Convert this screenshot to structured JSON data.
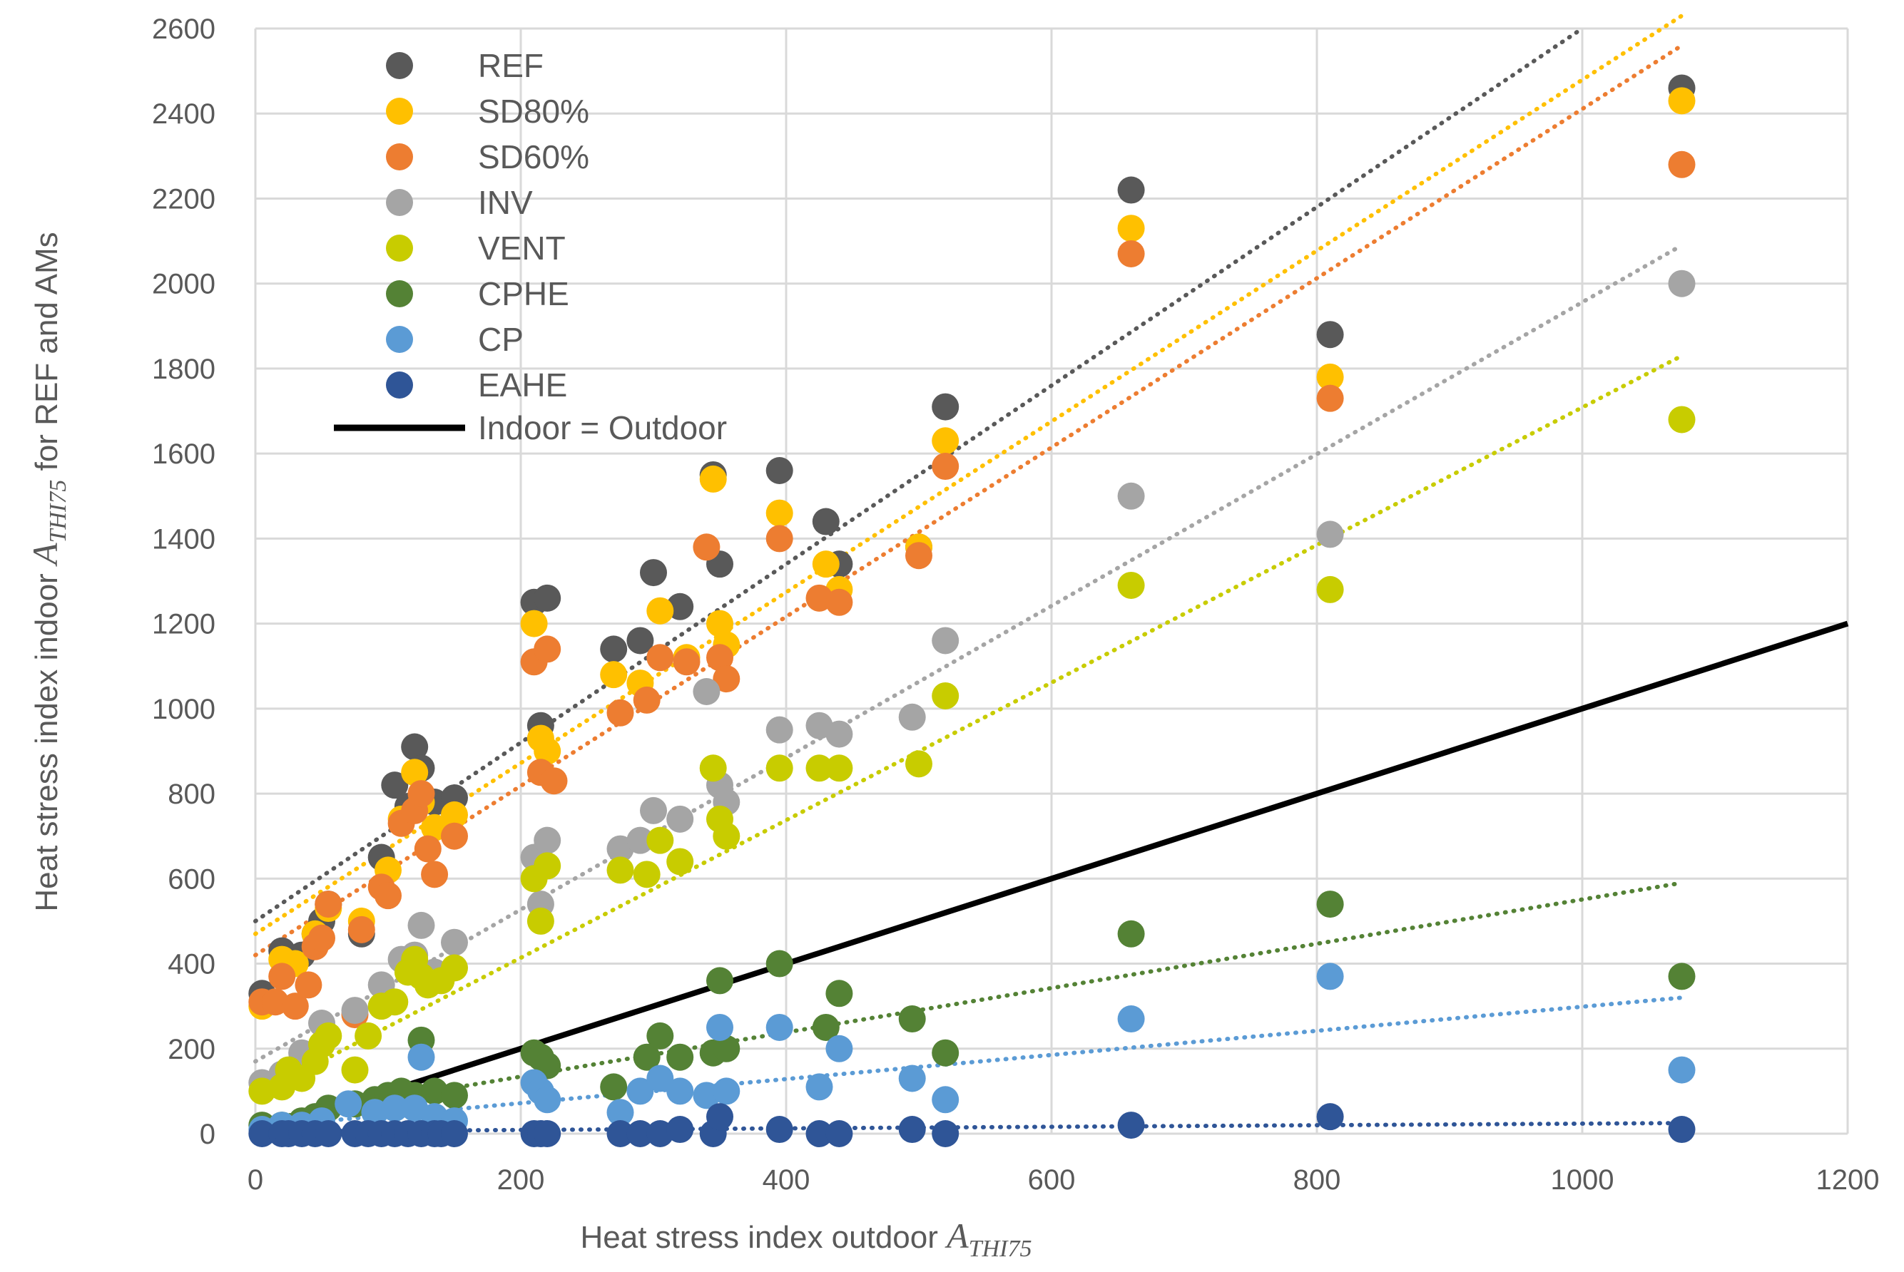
{
  "chart_data": {
    "type": "scatter",
    "title": "",
    "xlabel": "Heat stress index outdoor A_THI75",
    "xlabel_main": "Heat stress index outdoor ",
    "xlabel_sym": "A",
    "xlabel_sub": "THI75",
    "ylabel": "Heat stress index indoor A_THI75 for REF and AMs",
    "ylabel_pre": "Heat stress index indoor ",
    "ylabel_sym": "A",
    "ylabel_sub": "THI75",
    "ylabel_post": " for REF and AMs",
    "xlim": [
      0,
      1200
    ],
    "ylim": [
      0,
      2600
    ],
    "xticks": [
      "0",
      "200",
      "400",
      "600",
      "800",
      "1000",
      "1200"
    ],
    "yticks": [
      "0",
      "200",
      "400",
      "600",
      "800",
      "1000",
      "1200",
      "1400",
      "1600",
      "1800",
      "2000",
      "2200",
      "2400",
      "2600"
    ],
    "grid": true,
    "legend_position": "top-left",
    "identity_line": {
      "name": "Indoor = Outdoor",
      "color": "#000000",
      "x": [
        0,
        1200
      ],
      "y": [
        0,
        1200
      ]
    },
    "series": [
      {
        "name": "REF",
        "color": "#595959",
        "trend": [
          [
            0,
            500
          ],
          [
            1000,
            2600
          ]
        ],
        "points": [
          [
            5,
            330
          ],
          [
            20,
            430
          ],
          [
            35,
            420
          ],
          [
            45,
            470
          ],
          [
            50,
            500
          ],
          [
            55,
            540
          ],
          [
            80,
            470
          ],
          [
            95,
            650
          ],
          [
            105,
            820
          ],
          [
            115,
            770
          ],
          [
            120,
            910
          ],
          [
            125,
            860
          ],
          [
            135,
            780
          ],
          [
            150,
            790
          ],
          [
            210,
            1250
          ],
          [
            220,
            1260
          ],
          [
            215,
            960
          ],
          [
            270,
            1140
          ],
          [
            290,
            1160
          ],
          [
            300,
            1320
          ],
          [
            320,
            1240
          ],
          [
            345,
            1550
          ],
          [
            350,
            1340
          ],
          [
            395,
            1560
          ],
          [
            430,
            1440
          ],
          [
            440,
            1340
          ],
          [
            500,
            1380
          ],
          [
            520,
            1710
          ],
          [
            660,
            2220
          ],
          [
            810,
            1880
          ],
          [
            1075,
            2460
          ]
        ]
      },
      {
        "name": "SD80%",
        "color": "#FFC000",
        "trend": [
          [
            0,
            470
          ],
          [
            1075,
            2630
          ]
        ],
        "points": [
          [
            5,
            300
          ],
          [
            20,
            410
          ],
          [
            30,
            400
          ],
          [
            45,
            470
          ],
          [
            55,
            530
          ],
          [
            80,
            500
          ],
          [
            100,
            620
          ],
          [
            110,
            740
          ],
          [
            120,
            850
          ],
          [
            125,
            780
          ],
          [
            135,
            720
          ],
          [
            150,
            750
          ],
          [
            210,
            1200
          ],
          [
            215,
            930
          ],
          [
            220,
            900
          ],
          [
            270,
            1080
          ],
          [
            290,
            1060
          ],
          [
            305,
            1230
          ],
          [
            325,
            1120
          ],
          [
            345,
            1540
          ],
          [
            350,
            1200
          ],
          [
            355,
            1150
          ],
          [
            395,
            1460
          ],
          [
            430,
            1340
          ],
          [
            440,
            1280
          ],
          [
            500,
            1380
          ],
          [
            520,
            1630
          ],
          [
            660,
            2130
          ],
          [
            810,
            1780
          ],
          [
            1075,
            2430
          ]
        ]
      },
      {
        "name": "SD60%",
        "color": "#ED7D31",
        "trend": [
          [
            0,
            420
          ],
          [
            1075,
            2560
          ]
        ],
        "points": [
          [
            5,
            310
          ],
          [
            15,
            310
          ],
          [
            20,
            370
          ],
          [
            30,
            300
          ],
          [
            40,
            350
          ],
          [
            45,
            440
          ],
          [
            50,
            460
          ],
          [
            55,
            540
          ],
          [
            75,
            280
          ],
          [
            80,
            480
          ],
          [
            95,
            580
          ],
          [
            100,
            560
          ],
          [
            110,
            730
          ],
          [
            120,
            760
          ],
          [
            125,
            800
          ],
          [
            130,
            670
          ],
          [
            135,
            610
          ],
          [
            150,
            700
          ],
          [
            210,
            1110
          ],
          [
            215,
            850
          ],
          [
            220,
            1140
          ],
          [
            225,
            830
          ],
          [
            275,
            990
          ],
          [
            295,
            1020
          ],
          [
            305,
            1120
          ],
          [
            325,
            1110
          ],
          [
            340,
            1380
          ],
          [
            350,
            1120
          ],
          [
            355,
            1070
          ],
          [
            395,
            1400
          ],
          [
            425,
            1260
          ],
          [
            440,
            1250
          ],
          [
            500,
            1360
          ],
          [
            520,
            1570
          ],
          [
            660,
            2070
          ],
          [
            810,
            1730
          ],
          [
            1075,
            2280
          ]
        ]
      },
      {
        "name": "INV",
        "color": "#A5A5A5",
        "trend": [
          [
            0,
            170
          ],
          [
            1075,
            2090
          ]
        ],
        "points": [
          [
            5,
            120
          ],
          [
            20,
            140
          ],
          [
            35,
            190
          ],
          [
            50,
            260
          ],
          [
            75,
            290
          ],
          [
            95,
            350
          ],
          [
            110,
            410
          ],
          [
            120,
            420
          ],
          [
            125,
            490
          ],
          [
            135,
            380
          ],
          [
            150,
            450
          ],
          [
            210,
            650
          ],
          [
            215,
            540
          ],
          [
            220,
            690
          ],
          [
            275,
            670
          ],
          [
            290,
            690
          ],
          [
            300,
            760
          ],
          [
            320,
            740
          ],
          [
            340,
            1040
          ],
          [
            350,
            820
          ],
          [
            355,
            780
          ],
          [
            395,
            950
          ],
          [
            425,
            960
          ],
          [
            440,
            940
          ],
          [
            495,
            980
          ],
          [
            520,
            1160
          ],
          [
            660,
            1500
          ],
          [
            810,
            1410
          ],
          [
            1075,
            2000
          ]
        ]
      },
      {
        "name": "VENT",
        "color": "#C8CC00",
        "trend": [
          [
            0,
            90
          ],
          [
            1075,
            1830
          ]
        ],
        "points": [
          [
            5,
            100
          ],
          [
            20,
            110
          ],
          [
            25,
            150
          ],
          [
            35,
            130
          ],
          [
            45,
            170
          ],
          [
            50,
            210
          ],
          [
            55,
            230
          ],
          [
            75,
            150
          ],
          [
            85,
            230
          ],
          [
            95,
            300
          ],
          [
            105,
            310
          ],
          [
            115,
            380
          ],
          [
            120,
            410
          ],
          [
            125,
            370
          ],
          [
            130,
            350
          ],
          [
            140,
            360
          ],
          [
            150,
            390
          ],
          [
            210,
            600
          ],
          [
            215,
            500
          ],
          [
            220,
            630
          ],
          [
            275,
            620
          ],
          [
            295,
            610
          ],
          [
            305,
            690
          ],
          [
            320,
            640
          ],
          [
            345,
            860
          ],
          [
            350,
            740
          ],
          [
            355,
            700
          ],
          [
            395,
            860
          ],
          [
            425,
            860
          ],
          [
            440,
            860
          ],
          [
            500,
            870
          ],
          [
            520,
            1030
          ],
          [
            660,
            1290
          ],
          [
            810,
            1280
          ],
          [
            1075,
            1680
          ]
        ]
      },
      {
        "name": "CPHE",
        "color": "#548235",
        "trend": [
          [
            0,
            30
          ],
          [
            1075,
            590
          ]
        ],
        "points": [
          [
            5,
            20
          ],
          [
            20,
            20
          ],
          [
            35,
            30
          ],
          [
            45,
            40
          ],
          [
            55,
            60
          ],
          [
            75,
            70
          ],
          [
            90,
            80
          ],
          [
            100,
            90
          ],
          [
            110,
            100
          ],
          [
            120,
            90
          ],
          [
            125,
            220
          ],
          [
            135,
            100
          ],
          [
            150,
            90
          ],
          [
            210,
            190
          ],
          [
            215,
            180
          ],
          [
            220,
            160
          ],
          [
            270,
            110
          ],
          [
            295,
            180
          ],
          [
            305,
            230
          ],
          [
            320,
            180
          ],
          [
            345,
            190
          ],
          [
            350,
            360
          ],
          [
            355,
            200
          ],
          [
            395,
            400
          ],
          [
            430,
            250
          ],
          [
            440,
            330
          ],
          [
            495,
            270
          ],
          [
            520,
            190
          ],
          [
            660,
            470
          ],
          [
            810,
            540
          ],
          [
            1075,
            370
          ]
        ]
      },
      {
        "name": "CP",
        "color": "#5B9BD5",
        "trend": [
          [
            0,
            15
          ],
          [
            1075,
            320
          ]
        ],
        "points": [
          [
            5,
            10
          ],
          [
            20,
            20
          ],
          [
            35,
            20
          ],
          [
            50,
            30
          ],
          [
            70,
            70
          ],
          [
            90,
            50
          ],
          [
            105,
            60
          ],
          [
            120,
            60
          ],
          [
            125,
            180
          ],
          [
            135,
            40
          ],
          [
            150,
            30
          ],
          [
            210,
            120
          ],
          [
            215,
            100
          ],
          [
            220,
            80
          ],
          [
            275,
            50
          ],
          [
            290,
            100
          ],
          [
            305,
            130
          ],
          [
            320,
            100
          ],
          [
            340,
            90
          ],
          [
            350,
            250
          ],
          [
            355,
            100
          ],
          [
            395,
            250
          ],
          [
            425,
            110
          ],
          [
            440,
            200
          ],
          [
            495,
            130
          ],
          [
            520,
            80
          ],
          [
            660,
            270
          ],
          [
            810,
            370
          ],
          [
            1075,
            150
          ]
        ]
      },
      {
        "name": "EAHE",
        "color": "#2F5597",
        "trend": [
          [
            0,
            5
          ],
          [
            1075,
            25
          ]
        ],
        "points": [
          [
            5,
            0
          ],
          [
            20,
            0
          ],
          [
            25,
            0
          ],
          [
            35,
            0
          ],
          [
            45,
            0
          ],
          [
            55,
            0
          ],
          [
            75,
            0
          ],
          [
            85,
            0
          ],
          [
            95,
            0
          ],
          [
            105,
            0
          ],
          [
            115,
            0
          ],
          [
            125,
            0
          ],
          [
            135,
            0
          ],
          [
            140,
            0
          ],
          [
            150,
            0
          ],
          [
            210,
            0
          ],
          [
            215,
            0
          ],
          [
            220,
            0
          ],
          [
            275,
            0
          ],
          [
            290,
            0
          ],
          [
            305,
            0
          ],
          [
            320,
            10
          ],
          [
            345,
            0
          ],
          [
            350,
            40
          ],
          [
            395,
            10
          ],
          [
            425,
            0
          ],
          [
            440,
            0
          ],
          [
            495,
            10
          ],
          [
            520,
            0
          ],
          [
            660,
            20
          ],
          [
            810,
            40
          ],
          [
            1075,
            10
          ]
        ]
      }
    ]
  }
}
